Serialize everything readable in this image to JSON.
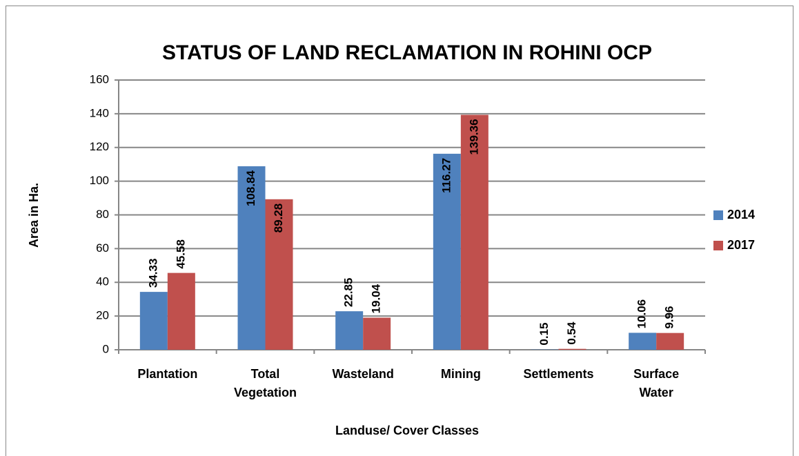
{
  "chart_data": {
    "type": "bar",
    "title": "STATUS OF LAND RECLAMATION IN ROHINI OCP",
    "x_label": "Landuse/ Cover Classes",
    "y_label": "Area in Ha.",
    "categories": [
      "Plantation",
      "Total Vegetation",
      "Wasteland",
      "Mining",
      "Settlements",
      "Surface Water"
    ],
    "series": [
      {
        "name": "2014",
        "color": "#4f81bd",
        "values": [
          34.33,
          108.84,
          22.85,
          116.27,
          0.15,
          10.06
        ]
      },
      {
        "name": "2017",
        "color": "#c0504d",
        "values": [
          45.58,
          89.28,
          19.04,
          139.36,
          0.54,
          9.96
        ]
      }
    ],
    "ylim": [
      0,
      160
    ],
    "yticks": [
      0,
      20,
      40,
      60,
      80,
      100,
      120,
      140,
      160
    ],
    "grid": true,
    "legend": "right"
  }
}
